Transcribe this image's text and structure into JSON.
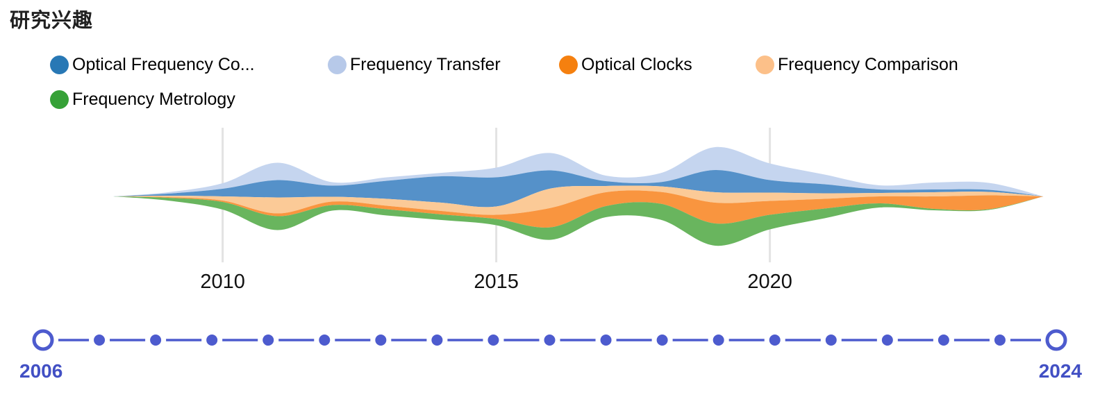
{
  "title": "研究兴趣",
  "legend": {
    "items": [
      {
        "label": "Optical Frequency Co...",
        "color": "#2878b5"
      },
      {
        "label": "Frequency Transfer",
        "color": "#b7c9e9"
      },
      {
        "label": "Optical Clocks",
        "color": "#f5800f"
      },
      {
        "label": "Frequency Comparison",
        "color": "#fcc089"
      },
      {
        "label": "Frequency Metrology",
        "color": "#36a137"
      }
    ]
  },
  "chart_data": {
    "type": "area",
    "variant": "streamgraph",
    "title": "研究兴趣",
    "x": [
      2008,
      2009,
      2010,
      2011,
      2012,
      2013,
      2014,
      2015,
      2016,
      2017,
      2018,
      2019,
      2020,
      2021,
      2022,
      2023,
      2024,
      2025
    ],
    "x_axis": {
      "tick_labels": [
        "2010",
        "2015",
        "2020"
      ],
      "tick_years": [
        2010,
        2015,
        2020
      ],
      "grid": true,
      "range": [
        2008,
        2025
      ]
    },
    "legend_position": "top",
    "series": [
      {
        "name": "Frequency Transfer",
        "fill": "#c5d5ef",
        "values": [
          0,
          2,
          8,
          25,
          5,
          5,
          5,
          14,
          25,
          8,
          13,
          33,
          24,
          14,
          6,
          10,
          10,
          0
        ]
      },
      {
        "name": "Optical Frequency Co...",
        "fill": "#5591c9",
        "values": [
          0,
          3,
          11,
          25,
          16,
          26,
          38,
          42,
          26,
          7,
          6,
          32,
          18,
          13,
          5,
          4,
          3,
          0
        ]
      },
      {
        "name": "Frequency Comparison",
        "fill": "#fbca97",
        "values": [
          0,
          2,
          6,
          23,
          7,
          10,
          12,
          12,
          28,
          9,
          8,
          15,
          12,
          8,
          5,
          6,
          5,
          0
        ]
      },
      {
        "name": "Optical Clocks",
        "fill": "#f9953f",
        "values": [
          0,
          1,
          2,
          4,
          5,
          5,
          5,
          6,
          28,
          20,
          17,
          30,
          20,
          14,
          10,
          18,
          20,
          0
        ]
      },
      {
        "name": "Frequency Metrology",
        "fill": "#69b55e",
        "values": [
          0,
          4,
          11,
          20,
          8,
          9,
          8,
          9,
          18,
          16,
          23,
          32,
          21,
          14,
          6,
          2,
          1,
          0
        ]
      }
    ]
  },
  "timeline": {
    "start_label": "2006",
    "end_label": "2024",
    "start_year": 2006,
    "end_year": 2024,
    "accent": "#4d5bce",
    "label_color": "#4250c4"
  }
}
